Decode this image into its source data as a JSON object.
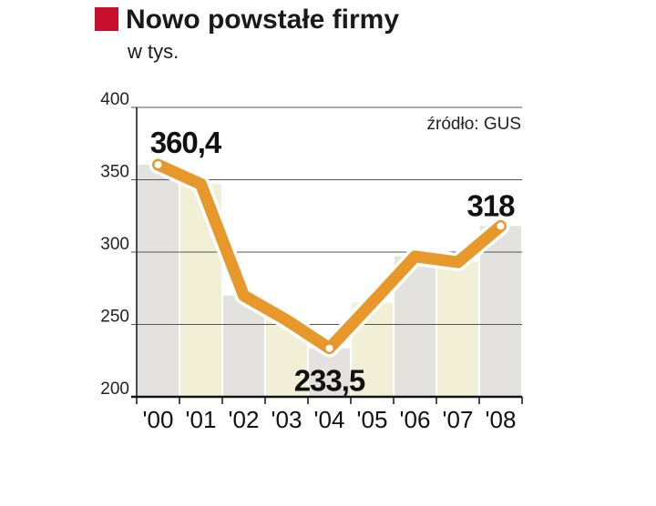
{
  "colors": {
    "accent_square": "#c8102e",
    "line": "#e8982a",
    "marker_fill": "#ffffff",
    "band_grey": "#e3e2df",
    "band_yellow": "#f1efd6",
    "grid": "#555555",
    "axis": "#111111"
  },
  "chart_data": {
    "type": "line",
    "title": "Nowo powstałe firmy",
    "subtitle": "w tys.",
    "source": "źródło: GUS",
    "categories": [
      "'00",
      "'01",
      "'02",
      "'03",
      "'04",
      "'05",
      "'06",
      "'07",
      "'08"
    ],
    "values": [
      360.4,
      347,
      270,
      253,
      233.5,
      265,
      297,
      293,
      318
    ],
    "ylim": [
      200,
      400
    ],
    "yticks": [
      200,
      250,
      300,
      350,
      400
    ],
    "grid": true,
    "annotations": [
      {
        "index": 0,
        "label": "360,4",
        "position": "above"
      },
      {
        "index": 4,
        "label": "233,5",
        "position": "below"
      },
      {
        "index": 8,
        "label": "318",
        "position": "above-left"
      }
    ]
  }
}
